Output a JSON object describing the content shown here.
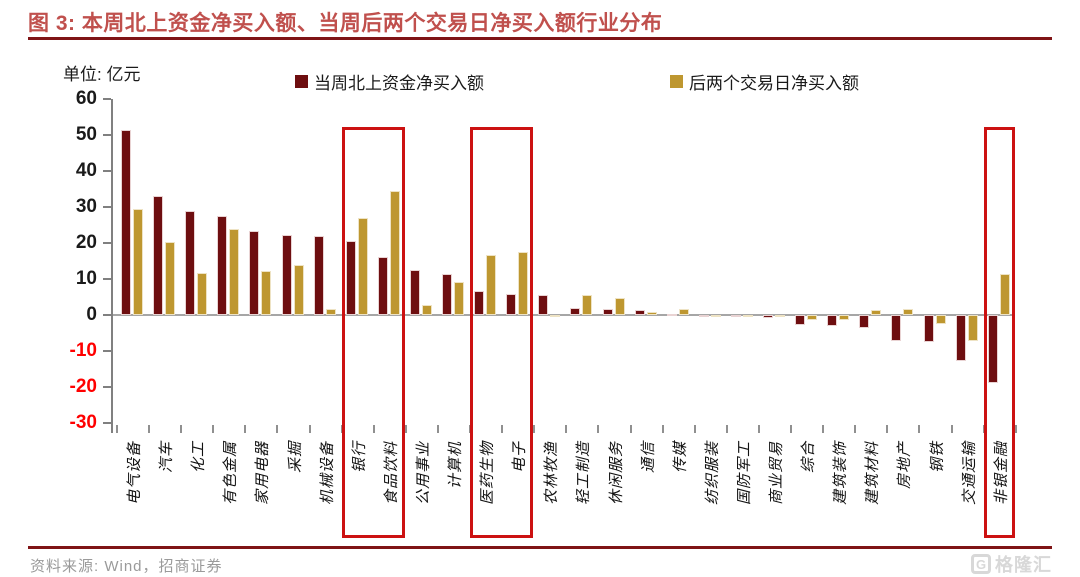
{
  "header": {
    "figure_label": "图 3:",
    "title": "本周北上资金净买入额、当周后两个交易日净买入额行业分布"
  },
  "chart_data": {
    "type": "bar",
    "unit_label": "单位: 亿元",
    "categories": [
      "电气设备",
      "汽车",
      "化工",
      "有色金属",
      "家用电器",
      "采掘",
      "机械设备",
      "银行",
      "食品饮料",
      "公用事业",
      "计算机",
      "医药生物",
      "电子",
      "农林牧渔",
      "轻工制造",
      "休闲服务",
      "通信",
      "传媒",
      "纺织服装",
      "国防军工",
      "商业贸易",
      "综合",
      "建筑装饰",
      "建筑材料",
      "房地产",
      "钢铁",
      "交通运输",
      "非银金融"
    ],
    "series": [
      {
        "name": "当周北上资金净买入额",
        "color": "#6e0e10",
        "values": [
          51.5,
          33.0,
          29.0,
          27.5,
          23.4,
          22.3,
          22.0,
          20.5,
          16.2,
          12.6,
          11.5,
          6.8,
          5.8,
          5.5,
          2.0,
          1.8,
          1.4,
          0.4,
          -0.3,
          -0.6,
          -0.9,
          -2.9,
          -3.1,
          -3.6,
          -7.2,
          -7.5,
          -12.7,
          -19.0
        ]
      },
      {
        "name": "后两个交易日净买入额",
        "color": "#be9730",
        "values": [
          29.5,
          20.2,
          11.7,
          24.0,
          12.2,
          13.8,
          1.8,
          27.0,
          34.5,
          2.7,
          9.1,
          16.6,
          17.4,
          -0.6,
          5.5,
          4.6,
          0.7,
          1.8,
          -0.5,
          -0.5,
          -0.1,
          -1.5,
          -1.5,
          1.4,
          1.6,
          -2.5,
          -7.3,
          11.5
        ]
      }
    ],
    "ylim": [
      -30,
      60
    ],
    "ytick_step": 10,
    "negative_tick_color": "#ff0000",
    "grid": false,
    "legend_position": "top",
    "highlighted_groups": [
      [
        "银行",
        "食品饮料"
      ],
      [
        "医药生物",
        "电子"
      ],
      [
        "非银金融"
      ]
    ],
    "highlight_color": "#cc1111"
  },
  "footer": {
    "source_text": "资料来源: Wind，招商证券",
    "logo_badge": "G",
    "logo_text": "格隆汇"
  }
}
